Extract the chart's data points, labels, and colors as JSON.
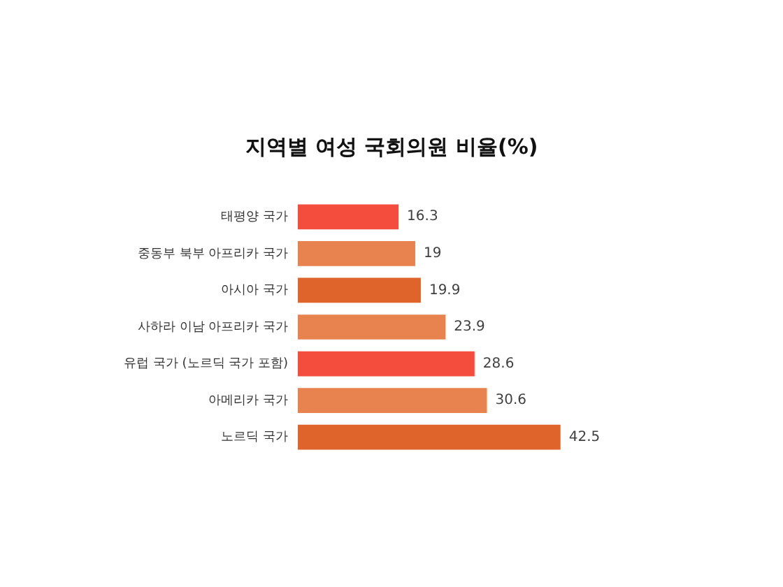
{
  "chart_data": {
    "type": "bar",
    "orientation": "horizontal",
    "title": "지역별 여성 국회의원 비율(%)",
    "categories": [
      "태평양 국가",
      "중동부 북부 아프리카 국가",
      "아시아 국가",
      "사하라 이남 아프리카 국가",
      "유럽 국가 (노르딕 국가 포함)",
      "아메리카 국가",
      "노르딕 국가"
    ],
    "values": [
      16.3,
      19,
      19.9,
      23.9,
      28.6,
      30.6,
      42.5
    ],
    "colors": [
      "#f44c3d",
      "#e8834f",
      "#df642b",
      "#e8834f",
      "#f44c3d",
      "#e8834f",
      "#df642b"
    ],
    "data_labels": true
  }
}
